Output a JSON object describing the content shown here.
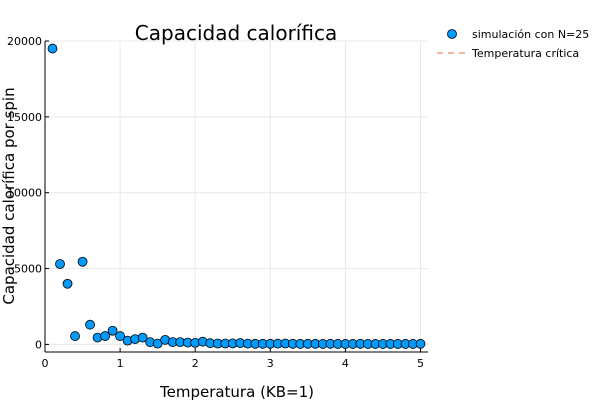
{
  "chart_data": {
    "type": "scatter",
    "title": "Capacidad calorífica",
    "xlabel": "Temperatura (KB=1)",
    "ylabel": "Capacidad calorífica por spin",
    "xlim": [
      0,
      5.1
    ],
    "ylim": [
      -500,
      20000
    ],
    "xticks": [
      0,
      1,
      2,
      3,
      4,
      5
    ],
    "yticks": [
      0,
      5000,
      10000,
      15000,
      20000
    ],
    "xtick_labels": [
      "0",
      "1",
      "2",
      "3",
      "4",
      "5"
    ],
    "ytick_labels": [
      "0",
      "5000",
      "10000",
      "15000",
      "20000"
    ],
    "grid": true,
    "legend_position": "top-right outside",
    "series": [
      {
        "name": "simulación con N=25",
        "kind": "markers",
        "color": "#009AFA",
        "x": [
          0.1,
          0.2,
          0.3,
          0.4,
          0.5,
          0.6,
          0.7,
          0.8,
          0.9,
          1.0,
          1.1,
          1.2,
          1.3,
          1.4,
          1.5,
          1.6,
          1.7,
          1.8,
          1.9,
          2.0,
          2.1,
          2.2,
          2.3,
          2.4,
          2.5,
          2.6,
          2.7,
          2.8,
          2.9,
          3.0,
          3.1,
          3.2,
          3.3,
          3.4,
          3.5,
          3.6,
          3.7,
          3.8,
          3.9,
          4.0,
          4.1,
          4.2,
          4.3,
          4.4,
          4.5,
          4.6,
          4.7,
          4.8,
          4.9,
          5.0
        ],
        "y": [
          19500,
          5300,
          4000,
          550,
          5450,
          1300,
          450,
          550,
          900,
          550,
          250,
          350,
          450,
          150,
          50,
          300,
          150,
          150,
          120,
          100,
          180,
          80,
          60,
          60,
          70,
          90,
          50,
          40,
          40,
          40,
          50,
          60,
          40,
          30,
          40,
          40,
          30,
          40,
          30,
          30,
          30,
          40,
          30,
          30,
          30,
          30,
          30,
          30,
          30,
          40
        ]
      },
      {
        "name": "Temperatura crítica",
        "kind": "line",
        "color": "#E26F46",
        "x": [],
        "y": []
      }
    ]
  }
}
